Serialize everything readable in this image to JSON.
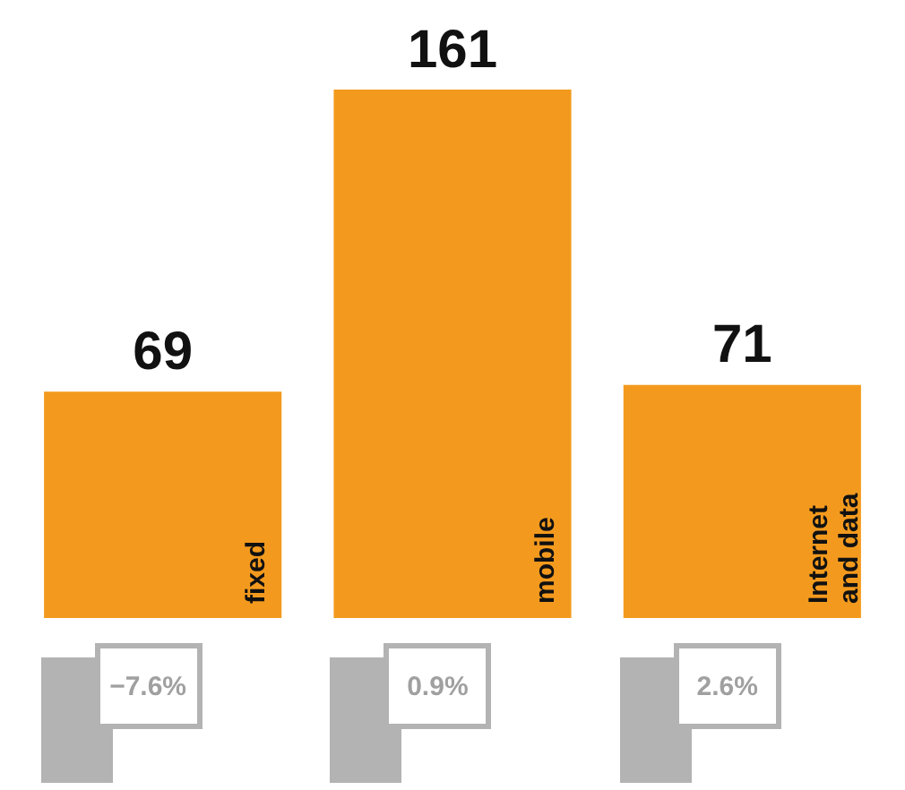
{
  "chart_data": {
    "type": "bar",
    "categories": [
      "fixed",
      "mobile",
      "Internet and data"
    ],
    "values": [
      69,
      161,
      71
    ],
    "color": "#f39a1e",
    "data_labels": true,
    "annotations": [
      "−7.6%",
      "0.9%",
      "2.6%"
    ]
  }
}
